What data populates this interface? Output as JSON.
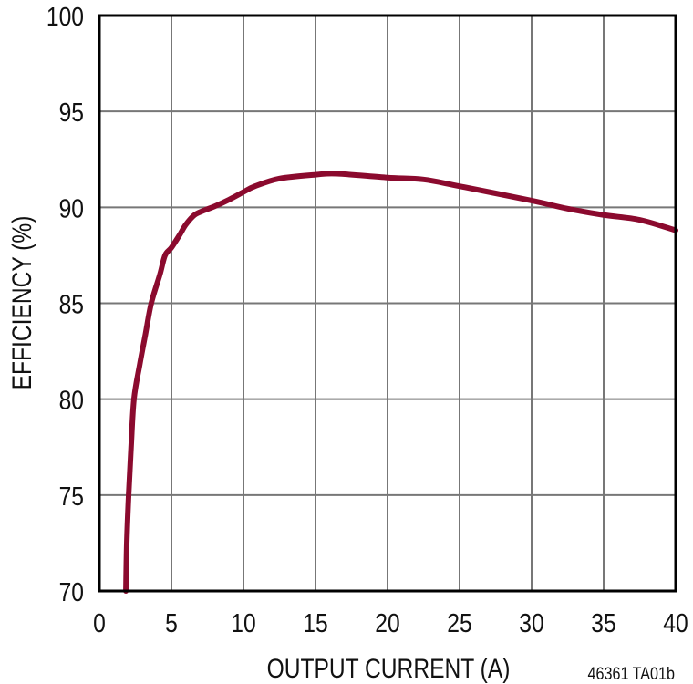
{
  "chart_data": {
    "type": "line",
    "title": "",
    "xlabel": "OUTPUT CURRENT (A)",
    "ylabel": "EFFICIENCY (%)",
    "xlim": [
      0,
      40
    ],
    "ylim": [
      70,
      100
    ],
    "xticks": [
      0,
      5,
      10,
      15,
      20,
      25,
      30,
      35,
      40
    ],
    "yticks": [
      70,
      75,
      80,
      85,
      90,
      95,
      100
    ],
    "grid": true,
    "legend": null,
    "annotation": "46361 TA01b",
    "series": [
      {
        "name": "Efficiency",
        "color": "#8B0A2E",
        "x": [
          1.84,
          1.9,
          2.03,
          2.2,
          2.4,
          2.8,
          3.2,
          3.6,
          4.2,
          4.56,
          5.0,
          5.6,
          6.0,
          6.6,
          7.3,
          8.0,
          9.0,
          10.0,
          10.8,
          12.5,
          15.0,
          16.5,
          20.0,
          22.5,
          25.0,
          30.0,
          32.5,
          35.0,
          37.5,
          40.0
        ],
        "y": [
          70.0,
          72.5,
          75.0,
          77.5,
          80.0,
          81.8,
          83.4,
          85.0,
          86.5,
          87.5,
          87.9,
          88.6,
          89.1,
          89.6,
          89.85,
          90.05,
          90.4,
          90.8,
          91.1,
          91.5,
          91.7,
          91.75,
          91.55,
          91.45,
          91.1,
          90.35,
          89.93,
          89.6,
          89.35,
          88.8
        ]
      }
    ]
  },
  "axes": {
    "x_title": "OUTPUT CURRENT (A)",
    "y_title": "EFFICIENCY (%)",
    "x_tick_labels": [
      "0",
      "5",
      "10",
      "15",
      "20",
      "25",
      "30",
      "35",
      "40"
    ],
    "y_tick_labels": [
      "70",
      "75",
      "80",
      "85",
      "90",
      "95",
      "100"
    ]
  },
  "footnote": "46361 TA01b",
  "colors": {
    "curve": "#8B0A2E",
    "grid": "#777777",
    "border": "#000000"
  }
}
